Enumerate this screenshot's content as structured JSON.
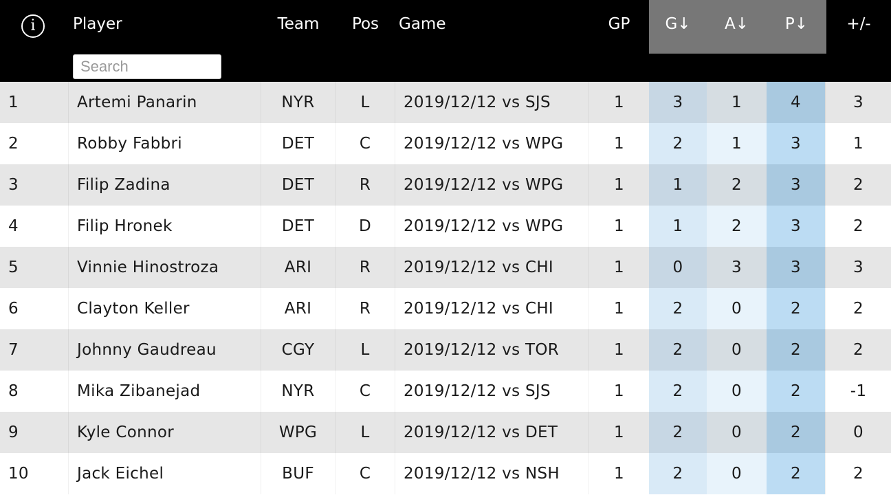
{
  "header": {
    "info_icon": "i",
    "columns": {
      "player": "Player",
      "team": "Team",
      "pos": "Pos",
      "game": "Game",
      "gp": "GP",
      "g": "G↓",
      "a": "A↓",
      "p": "P↓",
      "pm": "+/-"
    },
    "search": {
      "placeholder": "Search",
      "value": ""
    }
  },
  "colors": {
    "header_bg": "#000000",
    "sorted_header_bg": "#777777",
    "odd_row_bg": "#e6e6e6",
    "even_row_bg": "#ffffff",
    "highlight_g": "#d9eaf7",
    "highlight_a": "#e8f3fb",
    "highlight_p": "#bcdcf3"
  },
  "rows": [
    {
      "rank": "1",
      "player": "Artemi Panarin",
      "team": "NYR",
      "pos": "L",
      "game": "2019/12/12 vs SJS",
      "gp": "1",
      "g": "3",
      "a": "1",
      "p": "4",
      "pm": "3"
    },
    {
      "rank": "2",
      "player": "Robby Fabbri",
      "team": "DET",
      "pos": "C",
      "game": "2019/12/12 vs WPG",
      "gp": "1",
      "g": "2",
      "a": "1",
      "p": "3",
      "pm": "1"
    },
    {
      "rank": "3",
      "player": "Filip Zadina",
      "team": "DET",
      "pos": "R",
      "game": "2019/12/12 vs WPG",
      "gp": "1",
      "g": "1",
      "a": "2",
      "p": "3",
      "pm": "2"
    },
    {
      "rank": "4",
      "player": "Filip Hronek",
      "team": "DET",
      "pos": "D",
      "game": "2019/12/12 vs WPG",
      "gp": "1",
      "g": "1",
      "a": "2",
      "p": "3",
      "pm": "2"
    },
    {
      "rank": "5",
      "player": "Vinnie Hinostroza",
      "team": "ARI",
      "pos": "R",
      "game": "2019/12/12 vs CHI",
      "gp": "1",
      "g": "0",
      "a": "3",
      "p": "3",
      "pm": "3"
    },
    {
      "rank": "6",
      "player": "Clayton Keller",
      "team": "ARI",
      "pos": "R",
      "game": "2019/12/12 vs CHI",
      "gp": "1",
      "g": "2",
      "a": "0",
      "p": "2",
      "pm": "2"
    },
    {
      "rank": "7",
      "player": "Johnny Gaudreau",
      "team": "CGY",
      "pos": "L",
      "game": "2019/12/12 vs TOR",
      "gp": "1",
      "g": "2",
      "a": "0",
      "p": "2",
      "pm": "2"
    },
    {
      "rank": "8",
      "player": "Mika Zibanejad",
      "team": "NYR",
      "pos": "C",
      "game": "2019/12/12 vs SJS",
      "gp": "1",
      "g": "2",
      "a": "0",
      "p": "2",
      "pm": "-1"
    },
    {
      "rank": "9",
      "player": "Kyle Connor",
      "team": "WPG",
      "pos": "L",
      "game": "2019/12/12 vs DET",
      "gp": "1",
      "g": "2",
      "a": "0",
      "p": "2",
      "pm": "0"
    },
    {
      "rank": "10",
      "player": "Jack Eichel",
      "team": "BUF",
      "pos": "C",
      "game": "2019/12/12 vs NSH",
      "gp": "1",
      "g": "2",
      "a": "0",
      "p": "2",
      "pm": "2"
    }
  ]
}
